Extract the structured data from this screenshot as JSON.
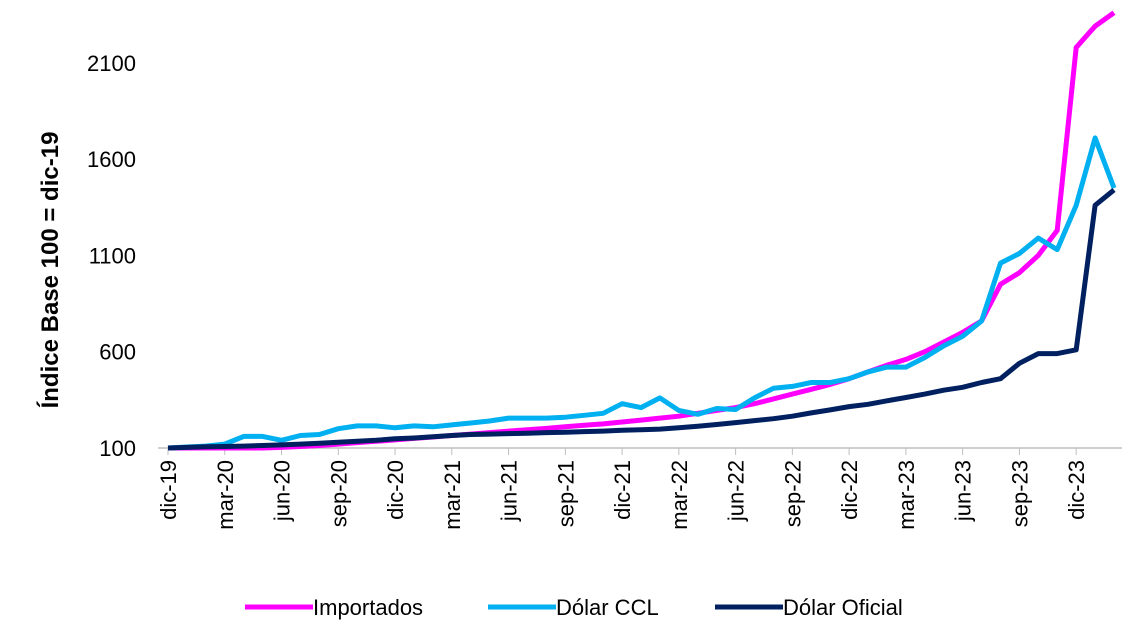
{
  "chart_data": {
    "type": "line",
    "ylabel": "Índice Base 100 = dic-19",
    "categories": [
      "dic-19",
      null,
      null,
      "mar-20",
      null,
      null,
      "jun-20",
      null,
      null,
      "sep-20",
      null,
      null,
      "dic-20",
      null,
      null,
      "mar-21",
      null,
      null,
      "jun-21",
      null,
      null,
      "sep-21",
      null,
      null,
      "dic-21",
      null,
      null,
      "mar-22",
      null,
      null,
      "jun-22",
      null,
      null,
      "sep-22",
      null,
      null,
      "dic-22",
      null,
      null,
      "mar-23",
      null,
      null,
      "jun-23",
      null,
      null,
      "sep-23",
      null,
      null,
      "dic-23",
      null,
      null
    ],
    "series": [
      {
        "name": "Importados",
        "color": "#ff00ff",
        "values": [
          100,
          100,
          100,
          100,
          100,
          100,
          103,
          108,
          113,
          120,
          128,
          135,
          142,
          150,
          157,
          165,
          172,
          180,
          188,
          195,
          202,
          210,
          218,
          225,
          235,
          245,
          255,
          265,
          280,
          295,
          310,
          330,
          355,
          380,
          405,
          430,
          460,
          495,
          530,
          560,
          600,
          650,
          700,
          760,
          950,
          1010,
          1100,
          1230,
          2180,
          2290,
          2360
        ]
      },
      {
        "name": "Dólar CCL",
        "color": "#00b0f0",
        "values": [
          100,
          105,
          110,
          120,
          160,
          160,
          140,
          165,
          170,
          200,
          215,
          215,
          205,
          215,
          210,
          220,
          230,
          240,
          255,
          255,
          255,
          260,
          270,
          280,
          330,
          310,
          360,
          295,
          275,
          305,
          300,
          360,
          410,
          420,
          440,
          440,
          460,
          495,
          520,
          520,
          570,
          630,
          680,
          760,
          1060,
          1110,
          1190,
          1130,
          1360,
          1710,
          1450
        ]
      },
      {
        "name": "Dólar Oficial",
        "color": "#002060",
        "values": [
          100,
          103,
          106,
          108,
          110,
          113,
          116,
          120,
          125,
          130,
          135,
          140,
          148,
          152,
          158,
          165,
          170,
          172,
          175,
          177,
          180,
          182,
          185,
          188,
          192,
          195,
          198,
          205,
          213,
          222,
          232,
          242,
          252,
          265,
          282,
          298,
          315,
          327,
          345,
          362,
          380,
          400,
          415,
          440,
          460,
          540,
          590,
          590,
          610,
          1360,
          1440
        ]
      }
    ],
    "ylim": [
      100,
      2400
    ],
    "yticks": [
      100,
      600,
      1100,
      1600,
      2100
    ]
  }
}
